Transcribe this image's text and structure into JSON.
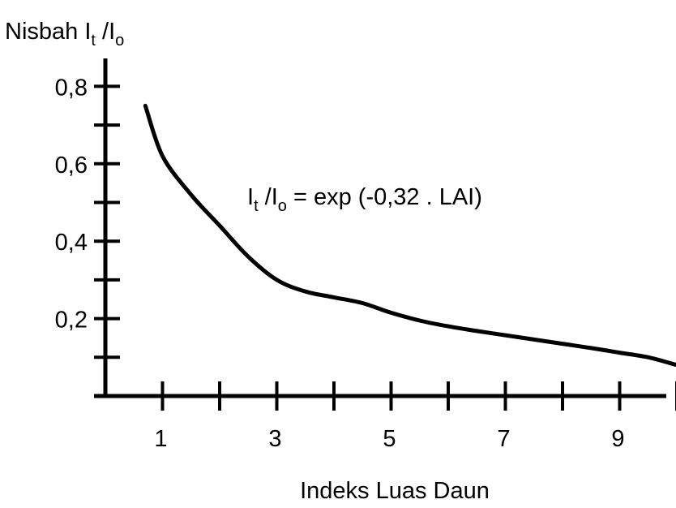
{
  "chart_data": {
    "type": "line",
    "ylabel": {
      "main": "Nisbah I",
      "sub1": "t",
      "mid": " /I",
      "sub2": "o"
    },
    "xlabel": "Indeks Luas Daun",
    "annotation": {
      "p1": "I",
      "s1": "t",
      "p2": " /I",
      "s2": "o",
      "p3": " = exp (-0,32 . LAI)"
    },
    "xlim": [
      0,
      10
    ],
    "ylim": [
      0,
      0.8
    ],
    "x_ticks": [
      1,
      2,
      3,
      4,
      5,
      6,
      7,
      8,
      9,
      10
    ],
    "x_tick_labels": [
      {
        "x": 1,
        "label": "1"
      },
      {
        "x": 3,
        "label": "3"
      },
      {
        "x": 5,
        "label": "5"
      },
      {
        "x": 7,
        "label": "7"
      },
      {
        "x": 9,
        "label": "9"
      }
    ],
    "y_ticks": [
      0.1,
      0.2,
      0.3,
      0.4,
      0.5,
      0.6,
      0.7,
      0.8
    ],
    "y_tick_labels": [
      {
        "y": 0.2,
        "label": "0,2"
      },
      {
        "y": 0.4,
        "label": "0,4"
      },
      {
        "y": 0.6,
        "label": "0,6"
      },
      {
        "y": 0.8,
        "label": "0,8"
      }
    ],
    "series": [
      {
        "x": [
          0.7,
          1.0,
          1.5,
          2.0,
          2.5,
          3.0,
          3.5,
          4.0,
          4.5,
          5.0,
          5.5,
          6.0,
          6.5,
          7.0,
          7.5,
          8.0,
          8.5,
          9.0,
          9.5,
          10.0
        ],
        "y": [
          0.75,
          0.62,
          0.52,
          0.44,
          0.36,
          0.3,
          0.27,
          0.255,
          0.24,
          0.215,
          0.195,
          0.18,
          0.168,
          0.157,
          0.146,
          0.135,
          0.124,
          0.112,
          0.1,
          0.08
        ]
      }
    ]
  }
}
